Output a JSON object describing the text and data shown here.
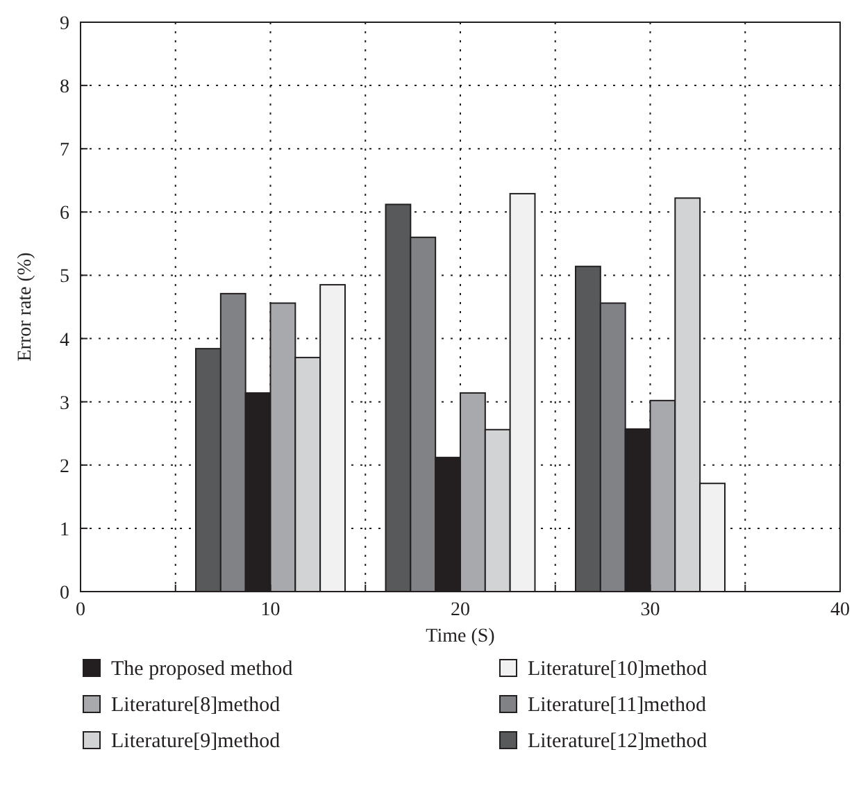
{
  "chart_data": {
    "type": "bar",
    "xlabel": "Time (S)",
    "ylabel": "Error rate (%)",
    "x": [
      10,
      20,
      30
    ],
    "series": [
      {
        "name": "Literature[12]method",
        "color": "#58595b",
        "values": [
          3.84,
          6.12,
          5.14
        ]
      },
      {
        "name": "Literature[11]method",
        "color": "#808285",
        "values": [
          4.71,
          5.6,
          4.56
        ]
      },
      {
        "name": "The proposed method",
        "color": "#231f20",
        "values": [
          3.14,
          2.12,
          2.57
        ]
      },
      {
        "name": "Literature[8]method",
        "color": "#a7a9ac",
        "values": [
          4.56,
          3.14,
          3.02
        ]
      },
      {
        "name": "Literature[9]method",
        "color": "#d1d3d4",
        "values": [
          3.7,
          2.56,
          6.22
        ]
      },
      {
        "name": "Literature[10]method",
        "color": "#f1f1f2",
        "values": [
          4.85,
          6.29,
          1.71
        ]
      }
    ],
    "xlim": [
      0,
      40
    ],
    "xticks": [
      0,
      {
        "value": 5,
        "label": null
      },
      10,
      {
        "value": 15,
        "label": null
      },
      20,
      {
        "value": 25,
        "label": null
      },
      30,
      {
        "value": 35,
        "label": null
      },
      40
    ],
    "ylim": [
      0,
      9
    ],
    "yticks": [
      0,
      1,
      2,
      3,
      4,
      5,
      6,
      7,
      8,
      9
    ],
    "grid": true,
    "legend": "bottom"
  }
}
